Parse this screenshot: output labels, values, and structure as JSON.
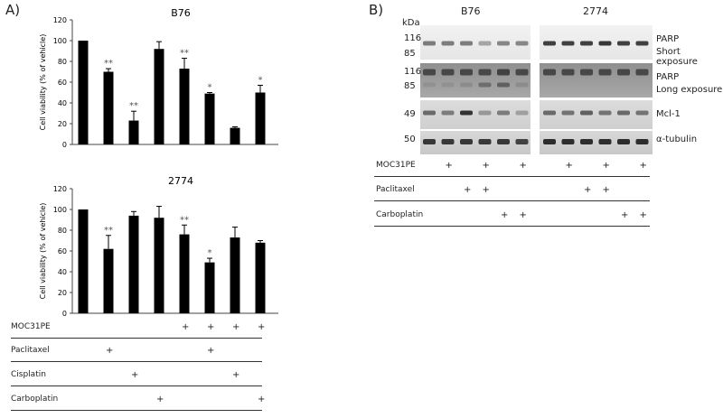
{
  "panelA": {
    "label": "A)",
    "chart_data": [
      {
        "type": "bar",
        "title": "B76",
        "ylabel": "Cell viability (% of vehicle)",
        "ylim": [
          0,
          120
        ],
        "yticks": [
          0,
          20,
          40,
          60,
          80,
          100,
          120
        ],
        "values": [
          100,
          70,
          23,
          92,
          73,
          49,
          16,
          50
        ],
        "errors": [
          0,
          3,
          9,
          7,
          10,
          1,
          1,
          7
        ],
        "annotations": [
          "",
          "**",
          "**",
          "",
          "**",
          "*",
          "",
          "*"
        ]
      },
      {
        "type": "bar",
        "title": "2774",
        "ylabel": "Cell viability (% of vehicle)",
        "ylim": [
          0,
          120
        ],
        "yticks": [
          0,
          20,
          40,
          60,
          80,
          100,
          120
        ],
        "values": [
          100,
          62,
          94,
          92,
          76,
          49,
          73,
          68
        ],
        "errors": [
          0,
          13,
          4,
          11,
          9,
          4,
          10,
          2
        ],
        "annotations": [
          "",
          "**",
          "",
          "",
          "**",
          "*",
          "",
          ""
        ]
      }
    ],
    "table": {
      "rows": [
        {
          "label": "MOC31PE",
          "marks": [
            "",
            "",
            "",
            "",
            "+",
            "+",
            "+",
            "+"
          ]
        },
        {
          "label": "Paclitaxel",
          "marks": [
            "",
            "+",
            "",
            "",
            "",
            "+",
            "",
            ""
          ]
        },
        {
          "label": "Cisplatin",
          "marks": [
            "",
            "",
            "+",
            "",
            "",
            "",
            "+",
            ""
          ]
        },
        {
          "label": "Carboplatin",
          "marks": [
            "",
            "",
            "",
            "+",
            "",
            "",
            "",
            "+"
          ]
        }
      ]
    }
  },
  "panelB": {
    "label": "B)",
    "kda_label": "kDa",
    "cell_lines": [
      "B76",
      "2774"
    ],
    "blots": [
      {
        "name": "PARP",
        "sub": "Short exposure",
        "markers": [
          "116",
          "85"
        ]
      },
      {
        "name": "PARP",
        "sub": "Long exposure",
        "markers": [
          "116",
          "85"
        ]
      },
      {
        "name": "Mcl-1",
        "sub": "",
        "markers": [
          "49"
        ]
      },
      {
        "name": "α-tubulin",
        "sub": "",
        "markers": [
          "50"
        ]
      }
    ],
    "table": {
      "rows": [
        {
          "label": "MOC31PE",
          "marks": [
            "",
            "+",
            "",
            "+",
            "",
            "+",
            "",
            "+",
            "",
            "+",
            "",
            "+"
          ]
        },
        {
          "label": "Paclitaxel",
          "marks": [
            "",
            "",
            "+",
            "+",
            "",
            "",
            "",
            "",
            "+",
            "+",
            "",
            ""
          ]
        },
        {
          "label": "Carboplatin",
          "marks": [
            "",
            "",
            "",
            "",
            "+",
            "+",
            "",
            "",
            "",
            "",
            "+",
            "+"
          ]
        }
      ]
    }
  }
}
